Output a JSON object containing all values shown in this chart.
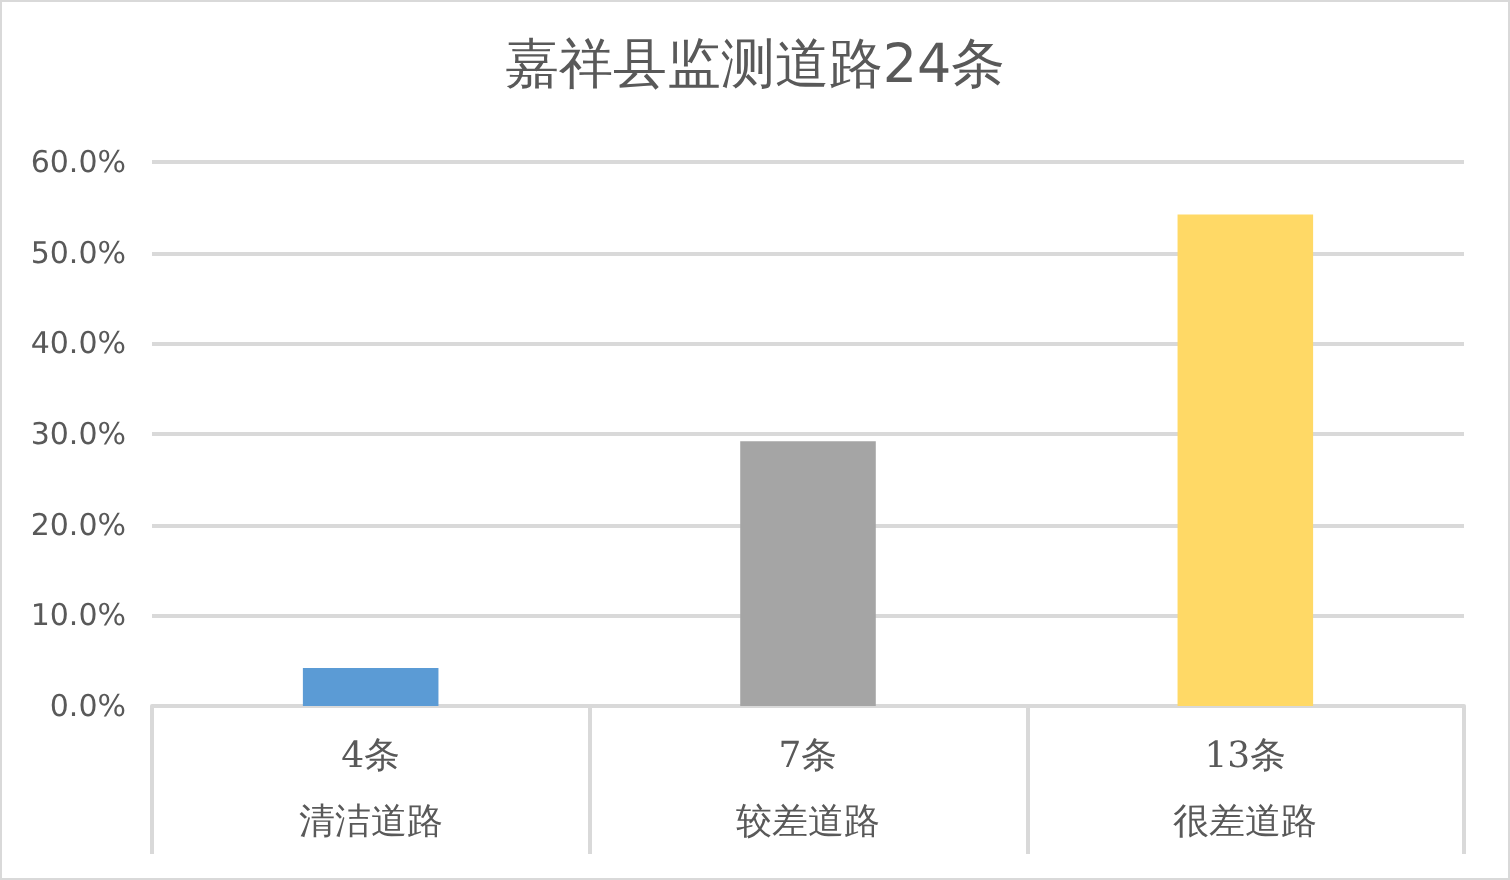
{
  "chart_data": {
    "type": "bar",
    "title": "嘉祥县监测道路24条",
    "categories": [
      "清洁道路",
      "较差道路",
      "很差道路"
    ],
    "values": [
      4.2,
      29.2,
      54.2
    ],
    "colors": [
      "#5b9bd5",
      "#a5a5a5",
      "#ffd966"
    ],
    "ylim": [
      0,
      60
    ],
    "yticks": [
      {
        "value": 0,
        "label": "0.0%"
      },
      {
        "value": 10,
        "label": "10.0%"
      },
      {
        "value": 20,
        "label": "20.0%"
      },
      {
        "value": 30,
        "label": "30.0%"
      },
      {
        "value": 40,
        "label": "40.0%"
      },
      {
        "value": 50,
        "label": "50.0%"
      },
      {
        "value": 60,
        "label": "60.0%"
      }
    ],
    "grid": "y",
    "annotations": [
      "4条",
      "7条",
      "13条"
    ]
  }
}
